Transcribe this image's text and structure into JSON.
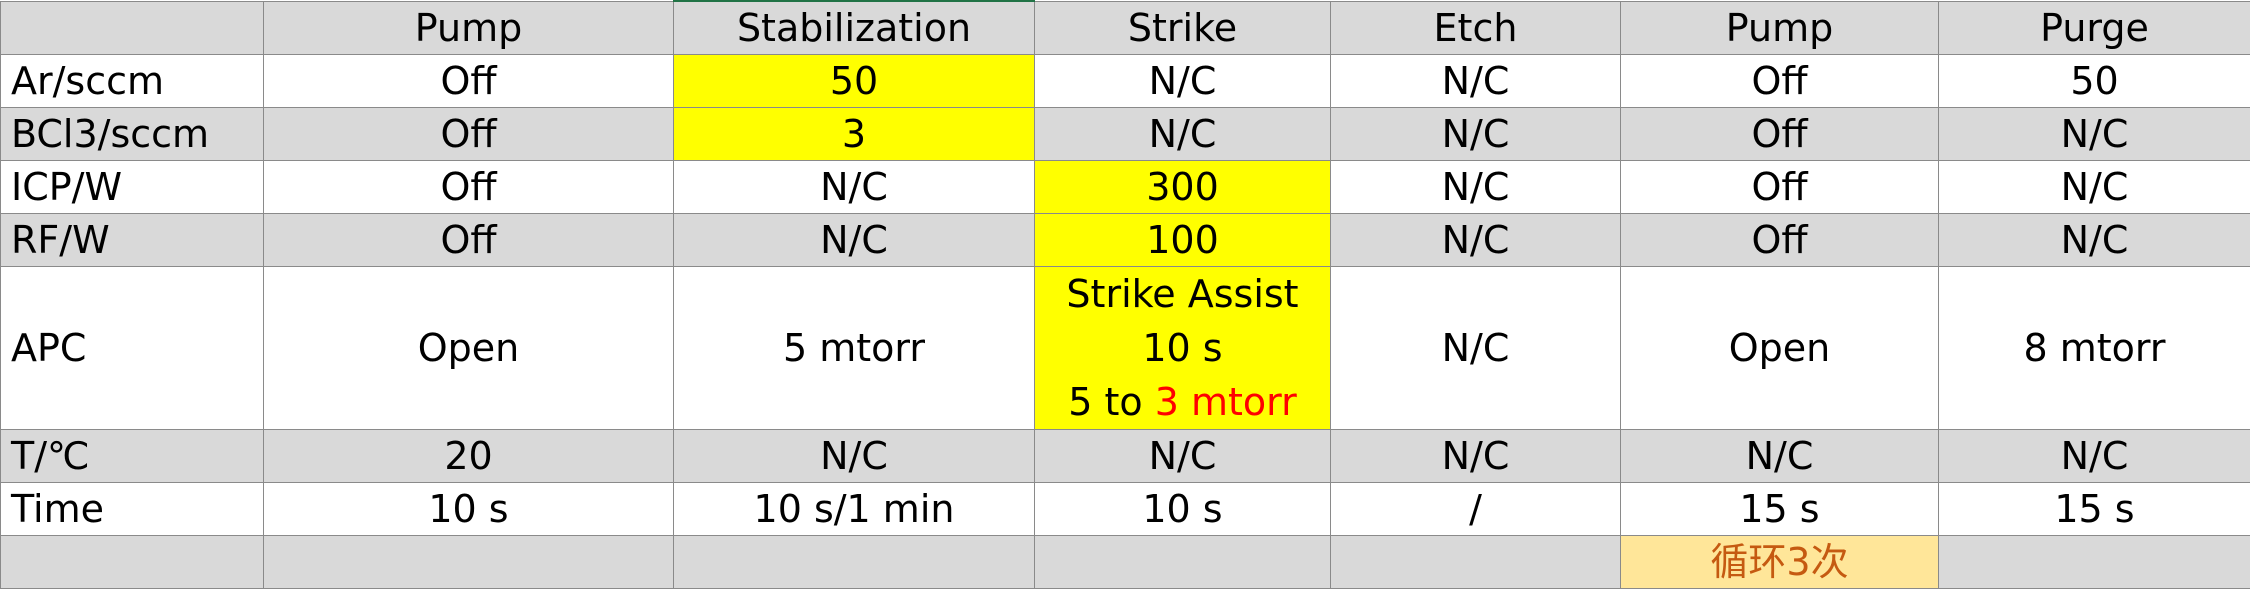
{
  "columns": [
    "",
    "Pump",
    "Stabilization",
    "Strike",
    "Etch",
    "Pump",
    "Purge"
  ],
  "rows": [
    {
      "label": "Ar/sccm",
      "cells": [
        "Off",
        "50",
        "N/C",
        "N/C",
        "Off",
        "50"
      ]
    },
    {
      "label": "BCl3/sccm",
      "cells": [
        "Off",
        "3",
        "N/C",
        "N/C",
        "Off",
        "N/C"
      ]
    },
    {
      "label": "ICP/W",
      "cells": [
        "Off",
        "N/C",
        "300",
        "N/C",
        "Off",
        "N/C"
      ]
    },
    {
      "label": "RF/W",
      "cells": [
        "Off",
        "N/C",
        "100",
        "N/C",
        "Off",
        "N/C"
      ]
    },
    {
      "label": "APC",
      "cells": [
        "Open",
        "5 mtorr",
        "",
        "N/C",
        "Open",
        "8 mtorr"
      ],
      "strike_assist": {
        "line1": "Strike Assist",
        "line2": "10 s",
        "line3_prefix": "5 to ",
        "line3_red": "3 mtorr"
      }
    },
    {
      "label": "T/℃",
      "cells": [
        "20",
        "N/C",
        "N/C",
        "N/C",
        "N/C",
        "N/C"
      ]
    },
    {
      "label": "Time",
      "cells": [
        "10 s",
        "10 s/1 min",
        "10 s",
        "/",
        "15 s",
        "15 s"
      ]
    }
  ],
  "footer_note": "循环3次",
  "colors": {
    "highlight": "#ffff00",
    "note_fill": "#ffe699",
    "note_text": "#c55a11",
    "band_gray": "#d9d9d9",
    "red": "#ff0000"
  }
}
